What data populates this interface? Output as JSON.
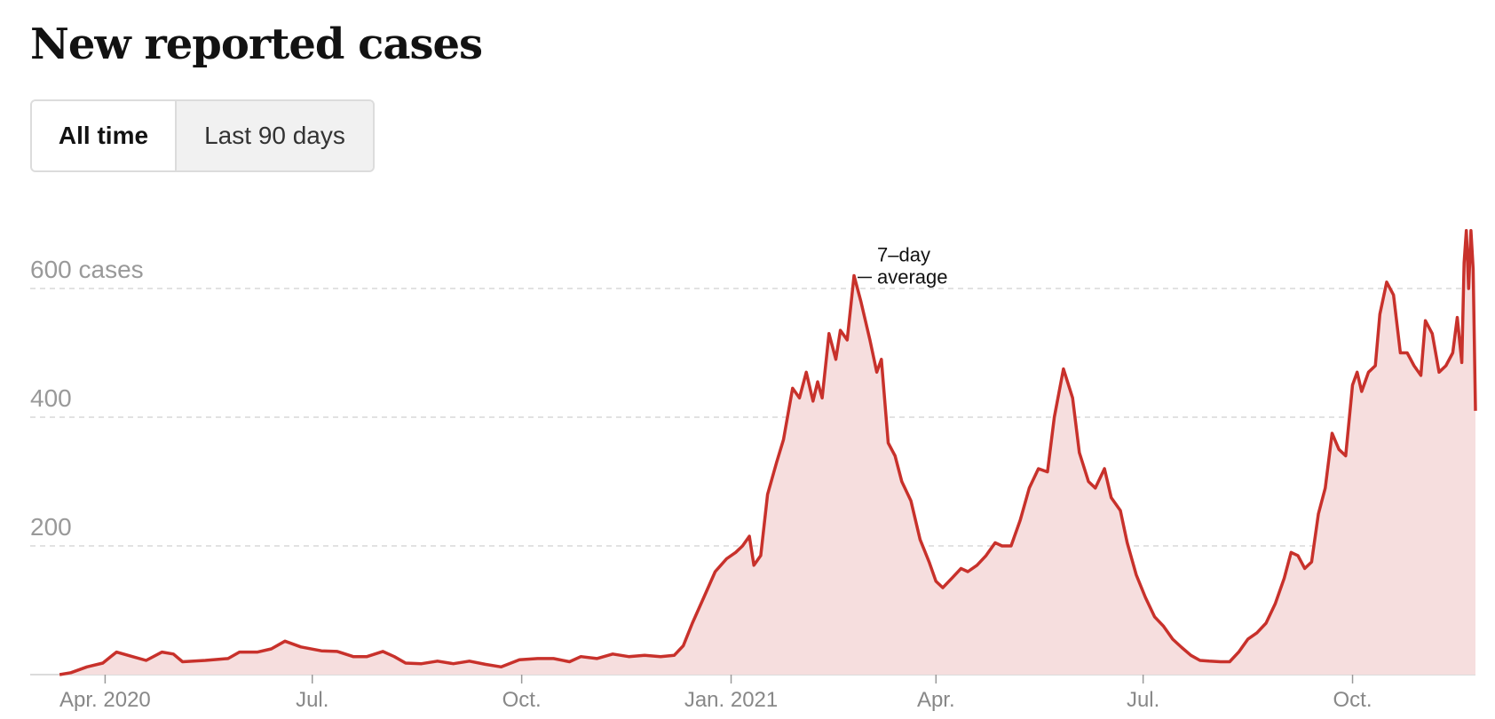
{
  "title": "New reported cases",
  "toggle": {
    "all_time": "All time",
    "last_90": "Last 90 days"
  },
  "colors": {
    "line": "#c8312b",
    "fill": "#f6dede",
    "grid": "#d9d9d9"
  },
  "chart_data": {
    "type": "area",
    "ylim": [
      0,
      750
    ],
    "xlim": [
      "2020-03-10",
      "2021-11-24"
    ],
    "y_ticks": [
      {
        "value": 200,
        "label": "200"
      },
      {
        "value": 400,
        "label": "400"
      },
      {
        "value": 600,
        "label": "600 cases"
      }
    ],
    "x_ticks": [
      {
        "date": "2020-04-01",
        "label": "Apr. 2020"
      },
      {
        "date": "2020-07-01",
        "label": "Jul."
      },
      {
        "date": "2020-10-01",
        "label": "Oct."
      },
      {
        "date": "2021-01-01",
        "label": "Jan. 2021"
      },
      {
        "date": "2021-04-01",
        "label": "Apr."
      },
      {
        "date": "2021-07-01",
        "label": "Jul."
      },
      {
        "date": "2021-10-01",
        "label": "Oct."
      }
    ],
    "annotation": {
      "line1": "7–day",
      "line2": "average",
      "date": "2021-01-14",
      "value": 620
    },
    "points": [
      [
        "2020-03-12",
        0
      ],
      [
        "2020-03-17",
        3
      ],
      [
        "2020-03-24",
        12
      ],
      [
        "2020-03-31",
        18
      ],
      [
        "2020-04-06",
        35
      ],
      [
        "2020-04-13",
        28
      ],
      [
        "2020-04-19",
        22
      ],
      [
        "2020-04-26",
        35
      ],
      [
        "2020-05-01",
        32
      ],
      [
        "2020-05-05",
        20
      ],
      [
        "2020-05-15",
        22
      ],
      [
        "2020-05-25",
        25
      ],
      [
        "2020-05-30",
        35
      ],
      [
        "2020-06-07",
        35
      ],
      [
        "2020-06-13",
        40
      ],
      [
        "2020-06-19",
        52
      ],
      [
        "2020-06-26",
        43
      ],
      [
        "2020-07-05",
        37
      ],
      [
        "2020-07-12",
        36
      ],
      [
        "2020-07-19",
        28
      ],
      [
        "2020-07-25",
        28
      ],
      [
        "2020-08-01",
        36
      ],
      [
        "2020-08-06",
        28
      ],
      [
        "2020-08-11",
        18
      ],
      [
        "2020-08-18",
        17
      ],
      [
        "2020-08-25",
        21
      ],
      [
        "2020-09-01",
        17
      ],
      [
        "2020-09-08",
        21
      ],
      [
        "2020-09-15",
        16
      ],
      [
        "2020-09-22",
        12
      ],
      [
        "2020-09-30",
        23
      ],
      [
        "2020-10-08",
        25
      ],
      [
        "2020-10-15",
        25
      ],
      [
        "2020-10-22",
        20
      ],
      [
        "2020-10-27",
        28
      ],
      [
        "2020-11-03",
        25
      ],
      [
        "2020-11-10",
        32
      ],
      [
        "2020-11-17",
        28
      ],
      [
        "2020-11-24",
        30
      ],
      [
        "2020-12-01",
        28
      ],
      [
        "2020-12-07",
        30
      ],
      [
        "2020-12-11",
        45
      ],
      [
        "2020-12-15",
        80
      ],
      [
        "2020-12-20",
        120
      ],
      [
        "2020-12-25",
        160
      ],
      [
        "2020-12-30",
        180
      ],
      [
        "2021-01-03",
        190
      ],
      [
        "2021-01-06",
        200
      ],
      [
        "2021-01-09",
        215
      ],
      [
        "2021-01-11",
        170
      ],
      [
        "2021-01-14",
        185
      ],
      [
        "2021-01-17",
        280
      ],
      [
        "2021-01-21",
        330
      ],
      [
        "2021-01-24",
        365
      ],
      [
        "2021-01-28",
        445
      ],
      [
        "2021-01-31",
        430
      ],
      [
        "2021-02-03",
        470
      ],
      [
        "2021-02-06",
        425
      ],
      [
        "2021-02-08",
        455
      ],
      [
        "2021-02-10",
        430
      ],
      [
        "2021-02-13",
        530
      ],
      [
        "2021-02-16",
        490
      ],
      [
        "2021-02-18",
        535
      ],
      [
        "2021-02-21",
        520
      ],
      [
        "2021-02-24",
        620
      ],
      [
        "2021-02-27",
        580
      ],
      [
        "2021-03-03",
        520
      ],
      [
        "2021-03-06",
        470
      ],
      [
        "2021-03-08",
        490
      ],
      [
        "2021-03-11",
        360
      ],
      [
        "2021-03-14",
        340
      ],
      [
        "2021-03-17",
        300
      ],
      [
        "2021-03-21",
        270
      ],
      [
        "2021-03-25",
        210
      ],
      [
        "2021-03-29",
        175
      ],
      [
        "2021-04-01",
        145
      ],
      [
        "2021-04-04",
        135
      ],
      [
        "2021-04-08",
        150
      ],
      [
        "2021-04-12",
        165
      ],
      [
        "2021-04-15",
        160
      ],
      [
        "2021-04-19",
        170
      ],
      [
        "2021-04-23",
        185
      ],
      [
        "2021-04-27",
        205
      ],
      [
        "2021-04-30",
        200
      ],
      [
        "2021-05-04",
        200
      ],
      [
        "2021-05-08",
        240
      ],
      [
        "2021-05-12",
        290
      ],
      [
        "2021-05-16",
        320
      ],
      [
        "2021-05-20",
        315
      ],
      [
        "2021-05-23",
        400
      ],
      [
        "2021-05-27",
        475
      ],
      [
        "2021-05-31",
        430
      ],
      [
        "2021-06-03",
        345
      ],
      [
        "2021-06-07",
        300
      ],
      [
        "2021-06-10",
        290
      ],
      [
        "2021-06-14",
        320
      ],
      [
        "2021-06-17",
        275
      ],
      [
        "2021-06-21",
        255
      ],
      [
        "2021-06-24",
        205
      ],
      [
        "2021-06-28",
        155
      ],
      [
        "2021-07-02",
        120
      ],
      [
        "2021-07-06",
        90
      ],
      [
        "2021-07-10",
        75
      ],
      [
        "2021-07-14",
        55
      ],
      [
        "2021-07-18",
        42
      ],
      [
        "2021-07-22",
        30
      ],
      [
        "2021-07-26",
        22
      ],
      [
        "2021-07-30",
        21
      ],
      [
        "2021-08-04",
        20
      ],
      [
        "2021-08-08",
        20
      ],
      [
        "2021-08-12",
        35
      ],
      [
        "2021-08-16",
        55
      ],
      [
        "2021-08-20",
        65
      ],
      [
        "2021-08-24",
        80
      ],
      [
        "2021-08-28",
        110
      ],
      [
        "2021-09-01",
        150
      ],
      [
        "2021-09-04",
        190
      ],
      [
        "2021-09-07",
        185
      ],
      [
        "2021-09-10",
        165
      ],
      [
        "2021-09-13",
        175
      ],
      [
        "2021-09-16",
        250
      ],
      [
        "2021-09-19",
        290
      ],
      [
        "2021-09-22",
        375
      ],
      [
        "2021-09-25",
        350
      ],
      [
        "2021-09-28",
        340
      ],
      [
        "2021-10-01",
        450
      ],
      [
        "2021-10-03",
        470
      ],
      [
        "2021-10-05",
        440
      ],
      [
        "2021-10-08",
        470
      ],
      [
        "2021-10-11",
        480
      ],
      [
        "2021-10-13",
        560
      ],
      [
        "2021-10-16",
        610
      ],
      [
        "2021-10-19",
        590
      ],
      [
        "2021-10-22",
        500
      ],
      [
        "2021-10-25",
        500
      ],
      [
        "2021-10-28",
        480
      ],
      [
        "2021-10-31",
        465
      ],
      [
        "2021-11-02",
        550
      ],
      [
        "2021-11-05",
        530
      ],
      [
        "2021-11-08",
        470
      ],
      [
        "2021-11-11",
        480
      ],
      [
        "2021-11-14",
        500
      ],
      [
        "2021-11-16",
        555
      ],
      [
        "2021-11-18",
        485
      ],
      [
        "2021-11-19",
        640
      ],
      [
        "2021-11-20",
        690
      ],
      [
        "2021-11-21",
        600
      ],
      [
        "2021-11-22",
        690
      ],
      [
        "2021-11-23",
        630
      ],
      [
        "2021-11-24",
        410
      ]
    ]
  }
}
